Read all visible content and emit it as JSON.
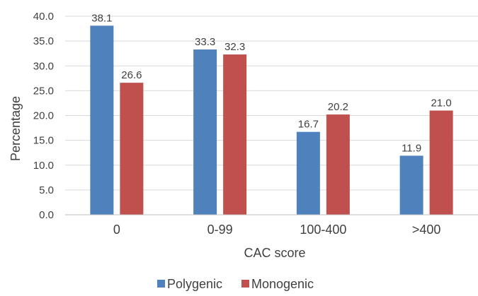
{
  "chart_data": {
    "type": "bar",
    "categories": [
      "0",
      "0-99",
      "100-400",
      ">400"
    ],
    "series": [
      {
        "name": "Polygenic",
        "values": [
          38.1,
          33.3,
          16.7,
          11.9
        ],
        "color": "#4f81bd"
      },
      {
        "name": "Monogenic",
        "values": [
          26.6,
          32.3,
          20.2,
          21.0
        ],
        "color": "#c0504d"
      }
    ],
    "data_labels": [
      [
        "38.1",
        "33.3",
        "16.7",
        "11.9"
      ],
      [
        "26.6",
        "32.3",
        "20.2",
        "21.0"
      ]
    ],
    "yticks": [
      "0.0",
      "5.0",
      "10.0",
      "15.0",
      "20.0",
      "25.0",
      "30.0",
      "35.0",
      "40.0"
    ],
    "ylim": [
      0,
      40
    ],
    "ytick_step": 5,
    "xlabel": "CAC score",
    "ylabel": "Percentage",
    "grid": true,
    "legend": "bottom"
  }
}
